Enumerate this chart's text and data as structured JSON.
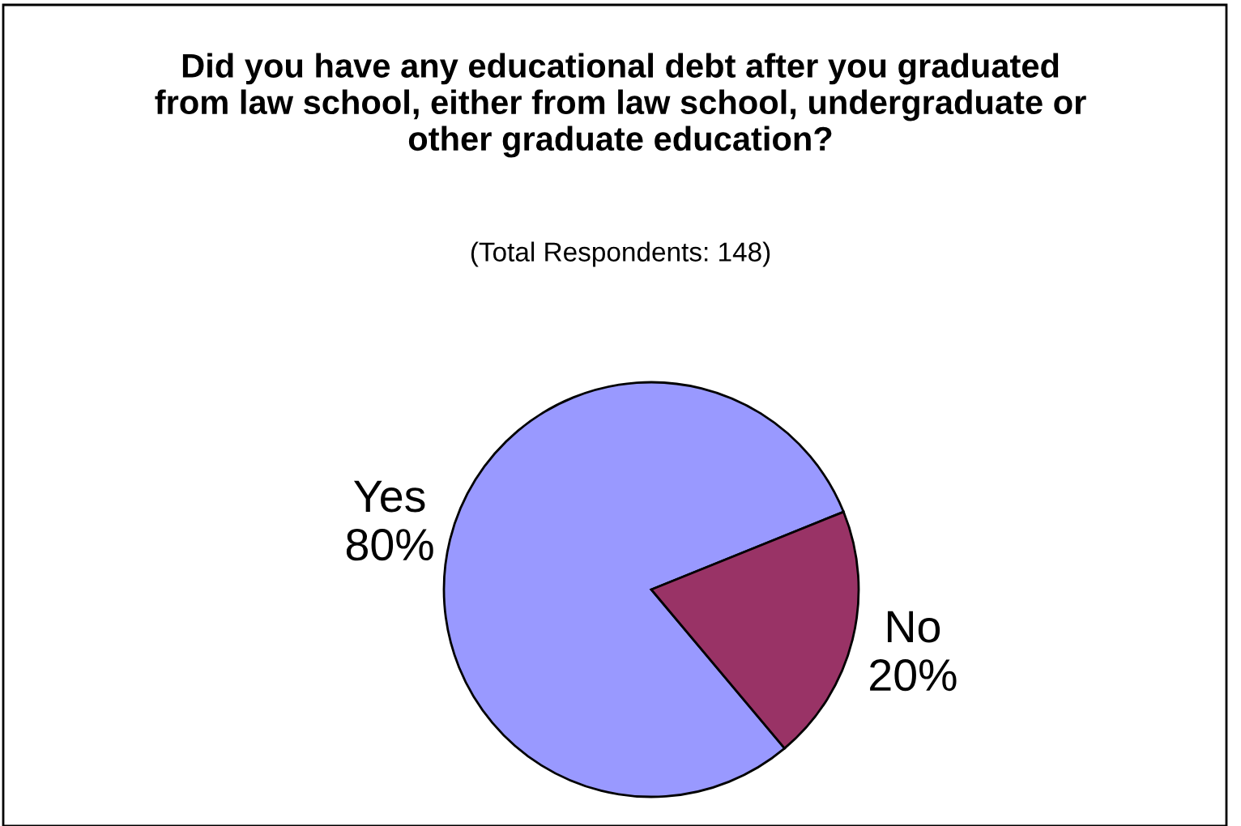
{
  "chart_data": {
    "type": "pie",
    "title": "Did you have any educational debt after you graduated from law school, either from law school, undergraduate or other graduate education?",
    "subtitle": "(Total Respondents: 148)",
    "categories": [
      "Yes",
      "No"
    ],
    "values": [
      80,
      20
    ],
    "colors": [
      "#9999ff",
      "#993366"
    ],
    "value_labels": [
      "80%",
      "20%"
    ],
    "legend": false
  }
}
